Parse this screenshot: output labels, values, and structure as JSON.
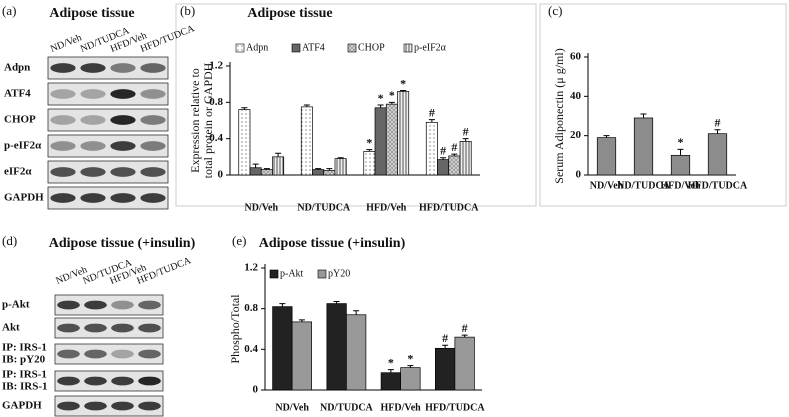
{
  "blots": [
    {
      "label": "(a)",
      "title": "Adipose tissue",
      "lanes": [
        "ND/Veh",
        "ND/TUDCA",
        "HFD/Veh",
        "HFD/TUDCA"
      ],
      "rows": [
        [
          "Adpn"
        ],
        [
          "ATF4"
        ],
        [
          "CHOP"
        ],
        [
          "p-eIF2α"
        ],
        [
          "eIF2α"
        ],
        [
          "GAPDH"
        ]
      ]
    },
    {
      "label": "(d)",
      "title": "Adipose tissue (+insulin)",
      "lanes": [
        "ND/Veh",
        "ND/TUDCA",
        "HFD/Veh",
        "HFD/TUDCA"
      ],
      "rows": [
        [
          "p-Akt"
        ],
        [
          "Akt"
        ],
        [
          "IP: IRS-1",
          "IB: pY20"
        ],
        [
          "IP: IRS-1",
          "IB: IRS-1"
        ],
        [
          "GAPDH"
        ]
      ]
    }
  ],
  "chart_data": [
    {
      "type": "bar",
      "label": "(b)",
      "title": "Adipose tissue",
      "ylabel": [
        "Expression relative to",
        "total protein or GAPDH"
      ],
      "categories": [
        "ND/Veh",
        "ND/TUDCA",
        "HFD/Veh",
        "HFD/TUDCA"
      ],
      "ylim": [
        0,
        1.2
      ],
      "yticks": [
        0,
        0.4,
        0.8,
        1.2
      ],
      "series": [
        {
          "name": "Adpn",
          "color": "#ffffff",
          "values": [
            0.72,
            0.75,
            0.26,
            0.58
          ],
          "errors": [
            0.02,
            0.02,
            0.02,
            0.03
          ],
          "markers": [
            null,
            null,
            "*",
            "#"
          ]
        },
        {
          "name": "ATF4",
          "color": "#666666",
          "values": [
            0.08,
            0.06,
            0.74,
            0.17
          ],
          "errors": [
            0.04,
            0.01,
            0.03,
            0.02
          ],
          "markers": [
            null,
            null,
            "*",
            "#"
          ]
        },
        {
          "name": "CHOP",
          "color": "#cccccc",
          "values": [
            0.06,
            0.05,
            0.78,
            0.21
          ],
          "errors": [
            0.01,
            0.02,
            0.02,
            0.02
          ],
          "markers": [
            null,
            null,
            "*",
            "#"
          ]
        },
        {
          "name": "p-eIF2α",
          "color": "#dddddd",
          "values": [
            0.2,
            0.18,
            0.92,
            0.37
          ],
          "errors": [
            0.04,
            0.01,
            0.01,
            0.03
          ],
          "markers": [
            null,
            null,
            "*",
            "#"
          ]
        }
      ]
    },
    {
      "type": "bar",
      "label": "(c)",
      "ylabel": [
        "Serum Adiponectin (μ g/ml)"
      ],
      "categories": [
        "ND/Veh",
        "ND/TUDCA",
        "HFD/Veh",
        "HFD/TUDCA"
      ],
      "ylim": [
        0,
        60
      ],
      "yticks": [
        0,
        20,
        40,
        60
      ],
      "series": [
        {
          "name": null,
          "color": "#8c8c8c",
          "values": [
            19,
            29,
            10,
            21
          ],
          "errors": [
            1,
            2,
            3,
            2
          ],
          "markers": [
            null,
            null,
            "*",
            "#"
          ]
        }
      ]
    },
    {
      "type": "bar",
      "label": "(e)",
      "title": "Adipose tissue (+insulin)",
      "ylabel": [
        "Phospho/Total"
      ],
      "categories": [
        "ND/Veh",
        "ND/TUDCA",
        "HFD/Veh",
        "HFD/TUDCA"
      ],
      "ylim": [
        0,
        1.2
      ],
      "yticks": [
        0,
        0.4,
        0.8,
        1.2
      ],
      "series": [
        {
          "name": "p-Akt",
          "color": "#222222",
          "values": [
            0.82,
            0.85,
            0.17,
            0.41
          ],
          "errors": [
            0.03,
            0.02,
            0.03,
            0.03
          ],
          "markers": [
            null,
            null,
            "*",
            "#"
          ]
        },
        {
          "name": "pY20",
          "color": "#999999",
          "values": [
            0.67,
            0.74,
            0.22,
            0.52
          ],
          "errors": [
            0.02,
            0.04,
            0.02,
            0.02
          ],
          "markers": [
            null,
            null,
            "*",
            "#"
          ]
        }
      ]
    }
  ]
}
